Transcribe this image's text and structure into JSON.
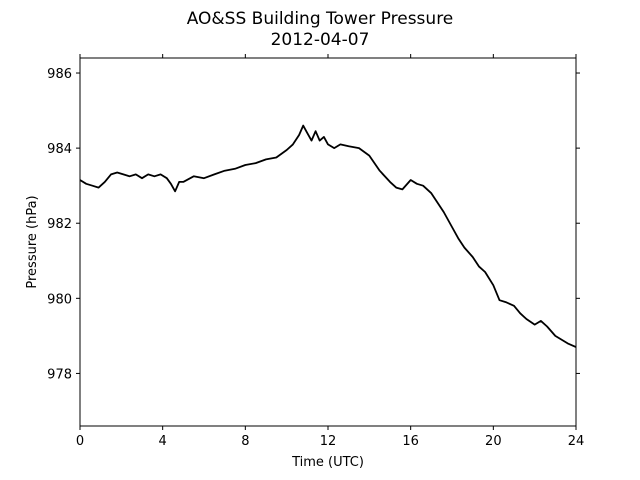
{
  "chart_data": {
    "type": "line",
    "title": "AO&SS Building Tower Pressure",
    "subtitle": "2012-04-07",
    "xlabel": "Time (UTC)",
    "ylabel": "Pressure (hPa)",
    "xlim": [
      0,
      24
    ],
    "ylim": [
      976.6,
      986.4
    ],
    "xticks": [
      0,
      4,
      8,
      12,
      16,
      20,
      24
    ],
    "yticks": [
      978,
      980,
      982,
      984,
      986
    ],
    "grid": false,
    "line_color": "#000000",
    "series": [
      {
        "x": [
          0,
          0.3,
          0.6,
          0.9,
          1.2,
          1.5,
          1.8,
          2.1,
          2.4,
          2.7,
          3.0,
          3.3,
          3.6,
          3.9,
          4.2,
          4.4,
          4.6,
          4.8,
          5.0,
          5.5,
          6.0,
          6.5,
          7.0,
          7.5,
          8.0,
          8.5,
          9.0,
          9.5,
          10.0,
          10.3,
          10.6,
          10.8,
          11.0,
          11.2,
          11.4,
          11.6,
          11.8,
          12.0,
          12.3,
          12.6,
          13.0,
          13.5,
          14.0,
          14.5,
          15.0,
          15.3,
          15.6,
          16.0,
          16.3,
          16.6,
          17.0,
          17.3,
          17.6,
          18.0,
          18.3,
          18.6,
          19.0,
          19.3,
          19.6,
          20.0,
          20.3,
          20.6,
          21.0,
          21.3,
          21.6,
          22.0,
          22.3,
          22.6,
          23.0,
          23.3,
          23.6,
          24.0
        ],
        "values": [
          983.15,
          983.05,
          983.0,
          982.95,
          983.1,
          983.3,
          983.35,
          983.3,
          983.25,
          983.3,
          983.2,
          983.3,
          983.25,
          983.3,
          983.2,
          983.05,
          982.85,
          983.1,
          983.1,
          983.25,
          983.2,
          983.3,
          983.4,
          983.45,
          983.55,
          983.6,
          983.7,
          983.75,
          983.95,
          984.1,
          984.35,
          984.6,
          984.4,
          984.2,
          984.45,
          984.2,
          984.3,
          984.1,
          984.0,
          984.1,
          984.05,
          984.0,
          983.8,
          983.4,
          983.1,
          982.95,
          982.9,
          983.15,
          983.05,
          983.0,
          982.8,
          982.55,
          982.3,
          981.9,
          981.6,
          981.35,
          981.1,
          980.85,
          980.7,
          980.35,
          979.95,
          979.9,
          979.8,
          979.6,
          979.45,
          979.3,
          979.4,
          979.25,
          979.0,
          978.9,
          978.8,
          978.7
        ]
      }
    ]
  }
}
